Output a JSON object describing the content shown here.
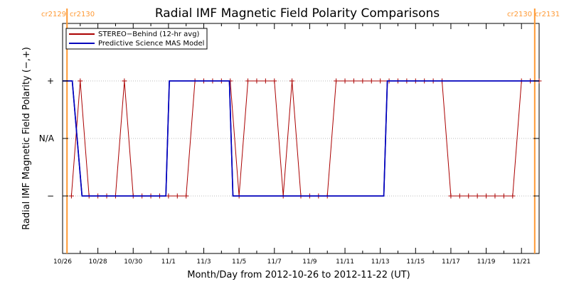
{
  "chart_data": {
    "type": "line",
    "title": "Radial IMF Magnetic Field Polarity Comparisons",
    "xlabel": "Month/Day from 2012-10-26 to 2012-11-22 (UT)",
    "ylabel": "Radial IMF Magnetic Field Polarity (−,+)",
    "x_range_days": [
      0,
      27
    ],
    "x_origin": "2012-10-26",
    "x_ticks": [
      {
        "day": 0,
        "label": "10/26"
      },
      {
        "day": 2,
        "label": "10/28"
      },
      {
        "day": 4,
        "label": "10/30"
      },
      {
        "day": 6,
        "label": "11/1"
      },
      {
        "day": 8,
        "label": "11/3"
      },
      {
        "day": 10,
        "label": "11/5"
      },
      {
        "day": 12,
        "label": "11/7"
      },
      {
        "day": 14,
        "label": "11/9"
      },
      {
        "day": 16,
        "label": "11/11"
      },
      {
        "day": 18,
        "label": "11/13"
      },
      {
        "day": 20,
        "label": "11/15"
      },
      {
        "day": 22,
        "label": "11/17"
      },
      {
        "day": 24,
        "label": "11/19"
      },
      {
        "day": 26,
        "label": "11/21"
      }
    ],
    "y_ticks": [
      {
        "value": 1,
        "label": "+"
      },
      {
        "value": 0,
        "label": "N/A"
      },
      {
        "value": -1,
        "label": "−"
      }
    ],
    "ylim": [
      -2,
      2
    ],
    "carrington_lines": [
      {
        "day": 0.25,
        "label_left": "cr2129",
        "label_right": "cr2130",
        "side": "left"
      },
      {
        "day": 26.75,
        "label_left": "cr2130",
        "label_right": "cr2131",
        "side": "right"
      }
    ],
    "series": [
      {
        "name": "STEREO−Behind (12-hr avg)",
        "color": "#aa0000",
        "markers": true,
        "points": [
          [
            0.5,
            -1
          ],
          [
            1.0,
            1
          ],
          [
            1.5,
            -1
          ],
          [
            2.0,
            -1
          ],
          [
            2.5,
            -1
          ],
          [
            3.0,
            -1
          ],
          [
            3.5,
            1
          ],
          [
            4.0,
            -1
          ],
          [
            4.5,
            -1
          ],
          [
            5.0,
            -1
          ],
          [
            5.5,
            -1
          ],
          [
            6.0,
            -1
          ],
          [
            6.5,
            -1
          ],
          [
            7.0,
            -1
          ],
          [
            7.5,
            1
          ],
          [
            8.0,
            1
          ],
          [
            8.5,
            1
          ],
          [
            9.0,
            1
          ],
          [
            9.5,
            1
          ],
          [
            10.0,
            -1
          ],
          [
            10.5,
            1
          ],
          [
            11.0,
            1
          ],
          [
            11.5,
            1
          ],
          [
            12.0,
            1
          ],
          [
            12.5,
            -1
          ],
          [
            13.0,
            1
          ],
          [
            13.5,
            -1
          ],
          [
            14.0,
            -1
          ],
          [
            14.5,
            -1
          ],
          [
            15.0,
            -1
          ],
          [
            15.5,
            1
          ],
          [
            16.0,
            1
          ],
          [
            16.5,
            1
          ],
          [
            17.0,
            1
          ],
          [
            17.5,
            1
          ],
          [
            18.0,
            1
          ],
          [
            18.5,
            1
          ],
          [
            19.0,
            1
          ],
          [
            19.5,
            1
          ],
          [
            20.0,
            1
          ],
          [
            20.5,
            1
          ],
          [
            21.0,
            1
          ],
          [
            21.5,
            1
          ],
          [
            22.0,
            -1
          ],
          [
            22.5,
            -1
          ],
          [
            23.0,
            -1
          ],
          [
            23.5,
            -1
          ],
          [
            24.0,
            -1
          ],
          [
            24.5,
            -1
          ],
          [
            25.0,
            -1
          ],
          [
            25.5,
            -1
          ],
          [
            26.0,
            1
          ],
          [
            26.5,
            1
          ],
          [
            27.0,
            1
          ]
        ]
      },
      {
        "name": "Predictive Science MAS Model",
        "color": "#0000bb",
        "markers": false,
        "points": [
          [
            0.0,
            1
          ],
          [
            0.55,
            1
          ],
          [
            1.1,
            -1
          ],
          [
            5.85,
            -1
          ],
          [
            6.05,
            1
          ],
          [
            9.45,
            1
          ],
          [
            9.65,
            -1
          ],
          [
            18.2,
            -1
          ],
          [
            18.4,
            1
          ],
          [
            27.0,
            1
          ]
        ]
      }
    ]
  }
}
